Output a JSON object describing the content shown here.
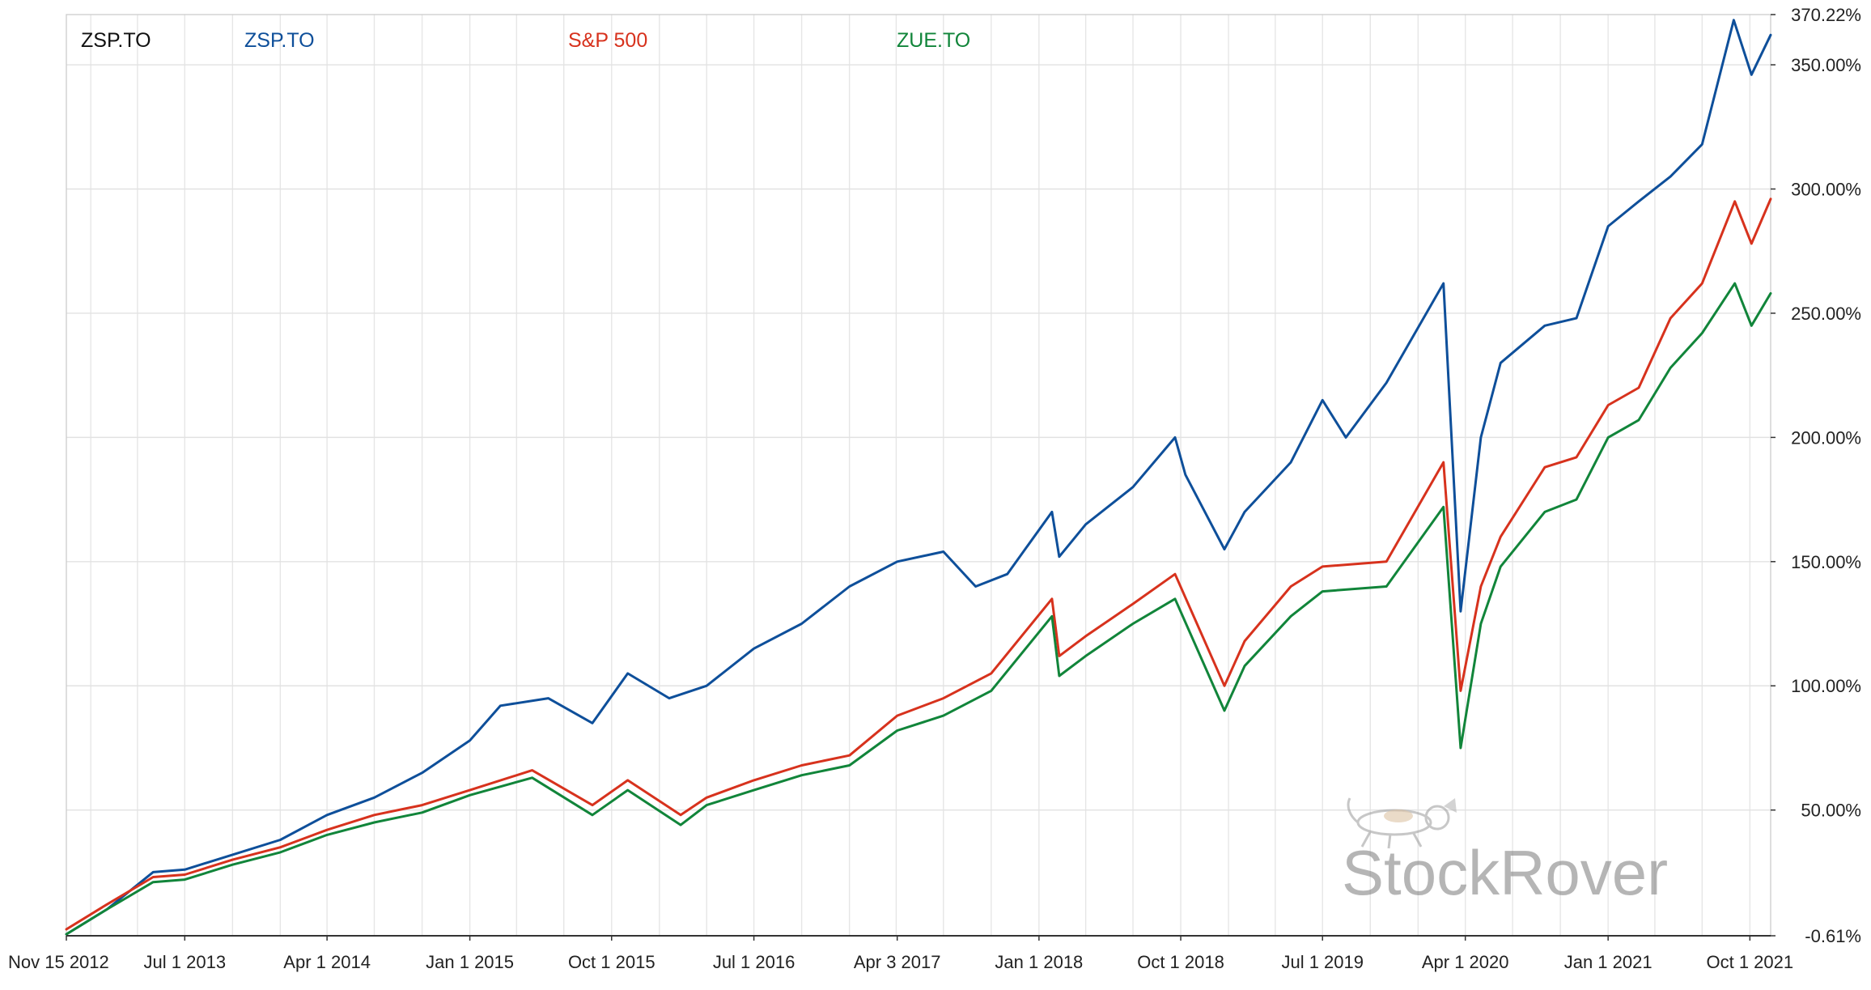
{
  "chart_data": {
    "type": "line",
    "title": "ZSP.TO",
    "x_ticks": [
      "Nov 15 2012",
      "Jul 1 2013",
      "Apr 1 2014",
      "Jan 1 2015",
      "Oct 1 2015",
      "Jul 1 2016",
      "Apr 3 2017",
      "Jan 1 2018",
      "Oct 1 2018",
      "Jul 1 2019",
      "Apr 1 2020",
      "Jan 1 2021",
      "Oct 1 2021"
    ],
    "x_range": [
      "2012-11-15",
      "2021-11-10"
    ],
    "y_ticks": [
      "370.22%",
      "350.00%",
      "300.00%",
      "250.00%",
      "200.00%",
      "150.00%",
      "100.00%",
      "50.00%",
      "-0.61%"
    ],
    "ylim": [
      -0.61,
      370.22
    ],
    "y_unit": "%",
    "grid": true,
    "legend_position": "top",
    "watermark": "StockRover",
    "series": [
      {
        "name": "ZSP.TO",
        "color": "#0e4f9a",
        "x": [
          "2012-11-15",
          "2013-02-01",
          "2013-05-01",
          "2013-07-01",
          "2013-10-01",
          "2014-01-01",
          "2014-04-01",
          "2014-07-01",
          "2014-10-01",
          "2015-01-01",
          "2015-03-01",
          "2015-06-01",
          "2015-08-25",
          "2015-11-01",
          "2016-01-20",
          "2016-04-01",
          "2016-07-01",
          "2016-10-01",
          "2017-01-01",
          "2017-04-03",
          "2017-07-01",
          "2017-09-01",
          "2017-11-01",
          "2018-01-26",
          "2018-02-09",
          "2018-04-01",
          "2018-07-01",
          "2018-09-20",
          "2018-10-10",
          "2018-12-24",
          "2019-02-01",
          "2019-05-01",
          "2019-07-01",
          "2019-08-15",
          "2019-11-01",
          "2020-02-19",
          "2020-03-23",
          "2020-05-01",
          "2020-06-08",
          "2020-09-01",
          "2020-11-01",
          "2021-01-01",
          "2021-03-01",
          "2021-05-01",
          "2021-07-01",
          "2021-08-31",
          "2021-10-04",
          "2021-11-10"
        ],
        "values": [
          0,
          10,
          25,
          26,
          32,
          38,
          48,
          55,
          65,
          78,
          92,
          95,
          85,
          105,
          95,
          100,
          115,
          125,
          140,
          150,
          154,
          140,
          145,
          170,
          152,
          165,
          180,
          200,
          185,
          155,
          170,
          190,
          215,
          200,
          222,
          262,
          130,
          200,
          230,
          245,
          248,
          285,
          295,
          305,
          318,
          368,
          346,
          362
        ]
      },
      {
        "name": "S&P 500",
        "color": "#d7321d",
        "x": [
          "2012-11-15",
          "2013-02-01",
          "2013-05-01",
          "2013-07-01",
          "2013-10-01",
          "2014-01-01",
          "2014-04-01",
          "2014-07-01",
          "2014-10-01",
          "2015-01-01",
          "2015-05-01",
          "2015-08-25",
          "2015-11-01",
          "2016-02-11",
          "2016-04-01",
          "2016-07-01",
          "2016-10-01",
          "2017-01-01",
          "2017-04-03",
          "2017-07-01",
          "2017-10-01",
          "2018-01-26",
          "2018-02-09",
          "2018-04-01",
          "2018-07-01",
          "2018-09-20",
          "2018-12-24",
          "2019-02-01",
          "2019-05-01",
          "2019-07-01",
          "2019-11-01",
          "2020-02-19",
          "2020-03-23",
          "2020-05-01",
          "2020-06-08",
          "2020-09-01",
          "2020-11-01",
          "2021-01-01",
          "2021-03-01",
          "2021-05-01",
          "2021-07-01",
          "2021-09-02",
          "2021-10-04",
          "2021-11-10"
        ],
        "values": [
          2,
          12,
          23,
          24,
          30,
          35,
          42,
          48,
          52,
          58,
          66,
          52,
          62,
          48,
          55,
          62,
          68,
          72,
          88,
          95,
          105,
          135,
          112,
          120,
          133,
          145,
          100,
          118,
          140,
          148,
          150,
          190,
          98,
          140,
          160,
          188,
          192,
          213,
          220,
          248,
          262,
          295,
          278,
          296
        ]
      },
      {
        "name": "ZUE.TO",
        "color": "#11853a",
        "x": [
          "2012-11-15",
          "2013-02-01",
          "2013-05-01",
          "2013-07-01",
          "2013-10-01",
          "2014-01-01",
          "2014-04-01",
          "2014-07-01",
          "2014-10-01",
          "2015-01-01",
          "2015-05-01",
          "2015-08-25",
          "2015-11-01",
          "2016-02-11",
          "2016-04-01",
          "2016-07-01",
          "2016-10-01",
          "2017-01-01",
          "2017-04-03",
          "2017-07-01",
          "2017-10-01",
          "2018-01-26",
          "2018-02-09",
          "2018-04-01",
          "2018-07-01",
          "2018-09-20",
          "2018-12-24",
          "2019-02-01",
          "2019-05-01",
          "2019-07-01",
          "2019-11-01",
          "2020-02-19",
          "2020-03-23",
          "2020-05-01",
          "2020-06-08",
          "2020-09-01",
          "2020-11-01",
          "2021-01-01",
          "2021-03-01",
          "2021-05-01",
          "2021-07-01",
          "2021-09-02",
          "2021-10-04",
          "2021-11-10"
        ],
        "values": [
          0,
          10,
          21,
          22,
          28,
          33,
          40,
          45,
          49,
          56,
          63,
          48,
          58,
          44,
          52,
          58,
          64,
          68,
          82,
          88,
          98,
          128,
          104,
          112,
          125,
          135,
          90,
          108,
          128,
          138,
          140,
          172,
          75,
          125,
          148,
          170,
          175,
          200,
          207,
          228,
          242,
          262,
          245,
          258
        ]
      }
    ]
  }
}
